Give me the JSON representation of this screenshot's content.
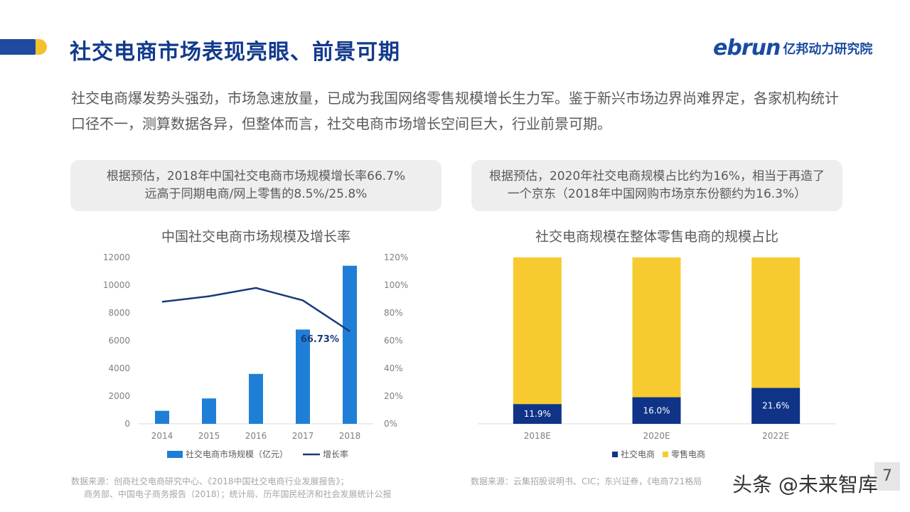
{
  "header": {
    "title": "社交电商市场表现亮眼、前景可期",
    "logo_word": "ebrun",
    "logo_cn": "亿邦动力研究院"
  },
  "intro": "社交电商爆发势头强劲，市场急速放量，已成为我国网络零售规模增长生力军。鉴于新兴市场边界尚难界定，各家机构统计口径不一，测算数据各异，但整体而言，社交电商市场增长空间巨大，行业前景可期。",
  "callouts": {
    "left": [
      "根据预估，2018年中国社交电商市场规模增长率66.7%",
      "远高于同期电商/网上零售的8.5%/25.8%"
    ],
    "right": "根据预估，2020年社交电商规模占比约为16%，相当于再造了一个京东（2018年中国网购市场京东份额约为16.3%）"
  },
  "sources": {
    "left": [
      "数据来源：创商社交电商研究中心、《2018中国社交电商行业发展报告》；",
      "商务部、中国电子商务报告（2018）；统计局、历年国民经济和社会发展统计公报"
    ],
    "right": "数据来源：云集招股说明书、CIC；东兴证券，《电商721格局"
  },
  "watermark": "头条 @未来智库",
  "page_number": "7",
  "colors": {
    "title_blue": "#123a8c",
    "bar_blue": "#1f7fd6",
    "line_navy": "#1a3a7a",
    "social_navy": "#0f3387",
    "retail_yellow": "#f7cb2f"
  },
  "chart_data": [
    {
      "type": "bar",
      "title": "中国社交电商市场规模及增长率",
      "categories": [
        "2014",
        "2015",
        "2016",
        "2017",
        "2018"
      ],
      "series": [
        {
          "name": "社交电商市场规模（亿元）",
          "type": "bar",
          "axis": "left",
          "values": [
            940,
            1830,
            3600,
            6800,
            11400
          ]
        },
        {
          "name": "增长率",
          "type": "line",
          "axis": "right",
          "values": [
            88,
            92,
            98,
            89,
            66.73
          ]
        }
      ],
      "y_left": {
        "ylim": [
          0,
          12000
        ],
        "ticks": [
          "0",
          "2000",
          "4000",
          "6000",
          "8000",
          "10000",
          "12000"
        ]
      },
      "y_right": {
        "ylim": [
          0,
          120
        ],
        "ticks": [
          "0%",
          "20%",
          "40%",
          "60%",
          "80%",
          "100%",
          "120%"
        ]
      },
      "annotation": "66.73%",
      "legend_position": "bottom"
    },
    {
      "type": "bar",
      "stacked": true,
      "title": "社交电商规模在整体零售电商的规模占比",
      "categories": [
        "2018E",
        "2020E",
        "2022E"
      ],
      "series": [
        {
          "name": "社交电商",
          "values": [
            11.9,
            16.0,
            21.6
          ],
          "labels": [
            "11.9%",
            "16.0%",
            "21.6%"
          ]
        },
        {
          "name": "零售电商",
          "values": [
            88.1,
            84.0,
            78.4
          ]
        }
      ],
      "ylim": [
        0,
        100
      ],
      "legend_position": "bottom"
    }
  ]
}
